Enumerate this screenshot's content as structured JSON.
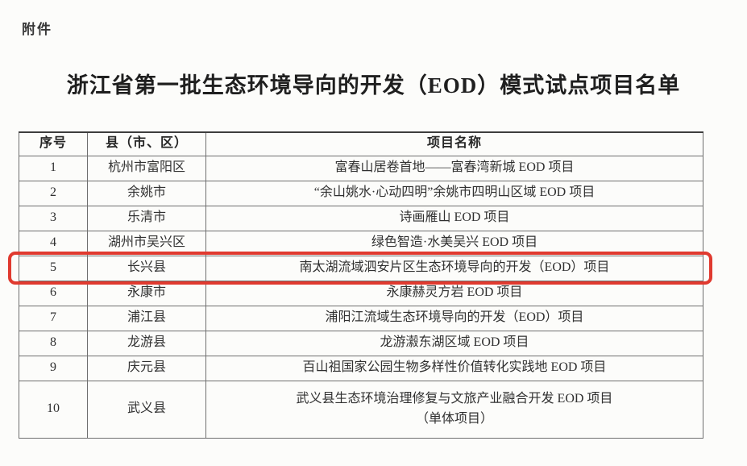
{
  "page": {
    "attachment_label": "附件",
    "title": "浙江省第一批生态环境导向的开发（EOD）模式试点项目名单"
  },
  "table": {
    "columns": [
      "序号",
      "县（市、区）",
      "项目名称"
    ],
    "highlight_color": "#e03a2f",
    "rows": [
      {
        "no": "1",
        "county": "杭州市富阳区",
        "project": "富春山居卷首地——富春湾新城 EOD 项目",
        "highlighted": false
      },
      {
        "no": "2",
        "county": "余姚市",
        "project": "“余山姚水·心动四明”余姚市四明山区域 EOD 项目",
        "highlighted": false
      },
      {
        "no": "3",
        "county": "乐清市",
        "project": "诗画雁山 EOD 项目",
        "highlighted": false
      },
      {
        "no": "4",
        "county": "湖州市吴兴区",
        "project": "绿色智造·水美吴兴 EOD 项目",
        "highlighted": false
      },
      {
        "no": "5",
        "county": "长兴县",
        "project": "南太湖流域泗安片区生态环境导向的开发（EOD）项目",
        "highlighted": true
      },
      {
        "no": "6",
        "county": "永康市",
        "project": "永康赫灵方岩 EOD 项目",
        "highlighted": false
      },
      {
        "no": "7",
        "county": "浦江县",
        "project": "浦阳江流域生态环境导向的开发（EOD）项目",
        "highlighted": false
      },
      {
        "no": "8",
        "county": "龙游县",
        "project": "龙游瀫东湖区域 EOD 项目",
        "highlighted": false
      },
      {
        "no": "9",
        "county": "庆元县",
        "project": "百山祖国家公园生物多样性价值转化实践地 EOD 项目",
        "highlighted": false
      },
      {
        "no": "10",
        "county": "武义县",
        "project": "武义县生态环境治理修复与文旅产业融合开发 EOD 项目",
        "project_line2": "（单体项目）",
        "highlighted": false
      }
    ]
  }
}
